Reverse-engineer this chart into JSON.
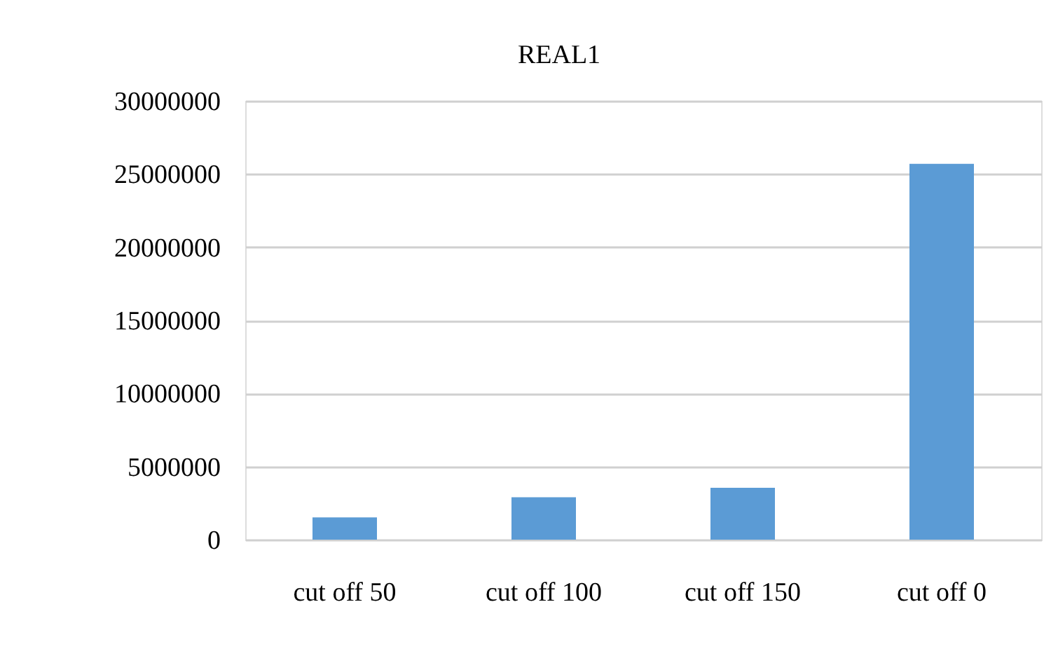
{
  "chart_data": {
    "type": "bar",
    "title": "REAL1",
    "categories": [
      "cut off 50",
      "cut off 100",
      "cut off 150",
      "cut off 0"
    ],
    "values": [
      1520000,
      2900000,
      3550000,
      25700000
    ],
    "color": "#5b9bd5",
    "ylim": [
      0,
      30000000
    ],
    "yticks": [
      0,
      5000000,
      10000000,
      15000000,
      20000000,
      25000000,
      30000000
    ],
    "grid": "y"
  }
}
